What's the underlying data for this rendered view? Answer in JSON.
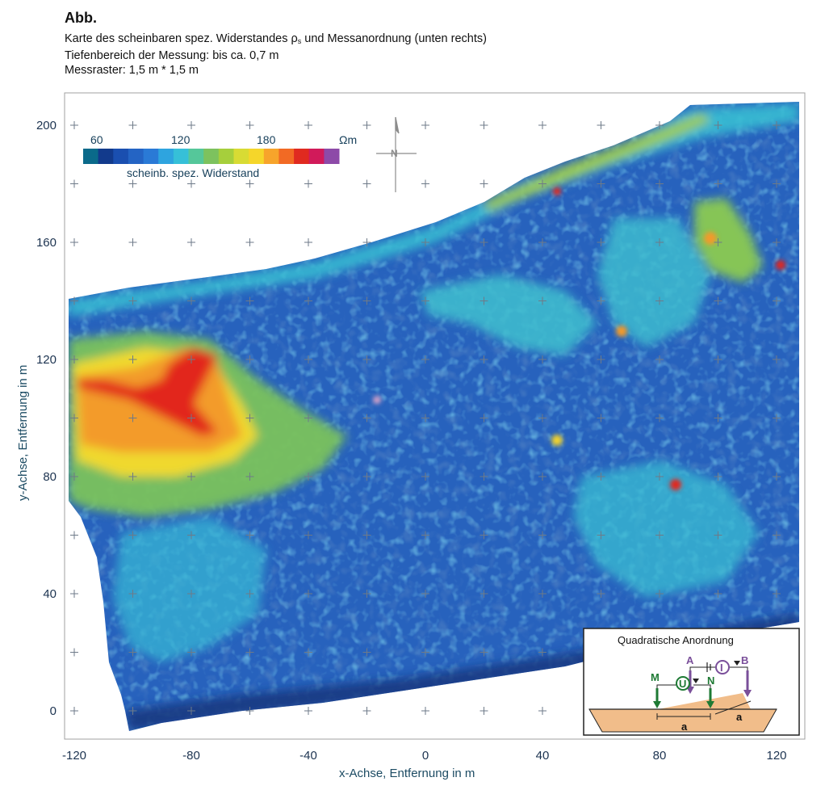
{
  "caption": {
    "heading": "Abb.",
    "line1_pre": "Karte des scheinbaren spez. Widerstandes ρ",
    "line1_sub": "s",
    "line1_post": " und Messanordnung (unten rechts)",
    "line2": "Tiefenbereich der Messung: bis ca. 0,7 m",
    "line3": "Messraster: 1,5 m * 1,5 m"
  },
  "map": {
    "x_axis_label": "x-Achse, Entfernung in m",
    "y_axis_label": "y-Achse, Entfernung in m",
    "x_ticks": [
      "-120",
      "-80",
      "-40",
      "0",
      "40",
      "80",
      "120"
    ],
    "y_ticks": [
      "200",
      "160",
      "120",
      "80",
      "40",
      "0"
    ],
    "x_range": [
      -122,
      127
    ],
    "y_range": [
      -8,
      210
    ],
    "grid_crosses_every_m": 20
  },
  "legend": {
    "tick_labels": [
      "60",
      "120",
      "180"
    ],
    "unit": "Ωm",
    "caption": "scheinb. spez. Widerstand",
    "colors": [
      "#0a6a8a",
      "#123a8c",
      "#1a4fb0",
      "#2464c4",
      "#2a7ad6",
      "#2ea4df",
      "#36c0d8",
      "#55c79a",
      "#7dc25e",
      "#a6cf3c",
      "#d8db34",
      "#f5d62a",
      "#f7a42b",
      "#f26a24",
      "#e02a20",
      "#d11a5a",
      "#8d4aa8"
    ]
  },
  "inset": {
    "title": "Quadratische Anordnung",
    "electrodes": {
      "M": "M",
      "N": "N",
      "A": "A",
      "B": "B"
    },
    "current_symbol": "I",
    "voltage_symbol": "U",
    "spacing_label": "a",
    "colors": {
      "potential": "#1e7a34",
      "current": "#7a4f9a",
      "ground": "#f1bd8a"
    }
  },
  "colors": {
    "outside": "#ffffff",
    "background_field": "#2a5fb8",
    "deep": "#163c8e",
    "cyan": "#36bcd6",
    "green": "#7cc35a",
    "yellow": "#f2dc33",
    "red": "#e0281f"
  }
}
